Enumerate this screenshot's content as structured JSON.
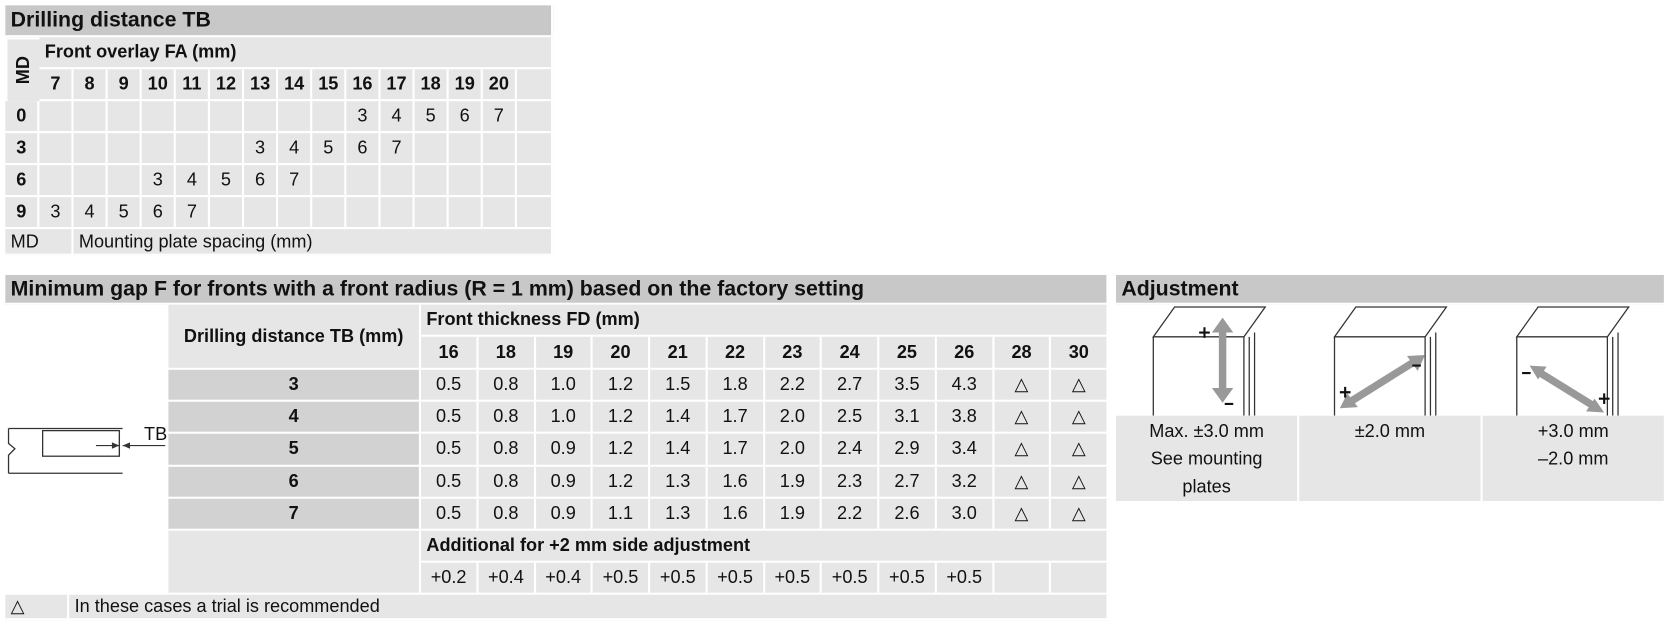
{
  "drilling_table": {
    "title": "Drilling distance TB",
    "row_axis_label": "MD",
    "column_axis_label": "Front overlay FA (mm)",
    "columns": [
      7,
      8,
      9,
      10,
      11,
      12,
      13,
      14,
      15,
      16,
      17,
      18,
      19,
      20
    ],
    "rows": [
      {
        "md": 0,
        "cells": [
          null,
          null,
          null,
          null,
          null,
          null,
          null,
          null,
          null,
          3,
          4,
          5,
          6,
          7
        ]
      },
      {
        "md": 3,
        "cells": [
          null,
          null,
          null,
          null,
          null,
          null,
          3,
          4,
          5,
          6,
          7,
          null,
          null,
          null
        ]
      },
      {
        "md": 6,
        "cells": [
          null,
          null,
          null,
          3,
          4,
          5,
          6,
          7,
          null,
          null,
          null,
          null,
          null,
          null
        ]
      },
      {
        "md": 9,
        "cells": [
          3,
          4,
          5,
          6,
          7,
          null,
          null,
          null,
          null,
          null,
          null,
          null,
          null,
          null
        ]
      }
    ],
    "legend": {
      "abbr": "MD",
      "text": "Mounting plate spacing (mm)"
    }
  },
  "gap_table": {
    "title": "Minimum gap F for fronts with a front radius (R = 1 mm) based on the factory setting",
    "row_axis_label": "Drilling distance TB (mm)",
    "column_axis_label": "Front thickness FD (mm)",
    "diagram_label": "TB",
    "columns": [
      16,
      18,
      19,
      20,
      21,
      22,
      23,
      24,
      25,
      26,
      28,
      30
    ],
    "rows": [
      {
        "tb": 3,
        "cells": [
          "0.5",
          "0.8",
          "1.0",
          "1.2",
          "1.5",
          "1.8",
          "2.2",
          "2.7",
          "3.5",
          "4.3",
          "△",
          "△"
        ]
      },
      {
        "tb": 4,
        "cells": [
          "0.5",
          "0.8",
          "1.0",
          "1.2",
          "1.4",
          "1.7",
          "2.0",
          "2.5",
          "3.1",
          "3.8",
          "△",
          "△"
        ]
      },
      {
        "tb": 5,
        "cells": [
          "0.5",
          "0.8",
          "0.9",
          "1.2",
          "1.4",
          "1.7",
          "2.0",
          "2.4",
          "2.9",
          "3.4",
          "△",
          "△"
        ]
      },
      {
        "tb": 6,
        "cells": [
          "0.5",
          "0.8",
          "0.9",
          "1.2",
          "1.3",
          "1.6",
          "1.9",
          "2.3",
          "2.7",
          "3.2",
          "△",
          "△"
        ]
      },
      {
        "tb": 7,
        "cells": [
          "0.5",
          "0.8",
          "0.9",
          "1.1",
          "1.3",
          "1.6",
          "1.9",
          "2.2",
          "2.6",
          "3.0",
          "△",
          "△"
        ]
      }
    ],
    "additional": {
      "label": "Additional for +2 mm side adjustment",
      "cells": [
        "+0.2",
        "+0.4",
        "+0.4",
        "+0.5",
        "+0.5",
        "+0.5",
        "+0.5",
        "+0.5",
        "+0.5",
        "+0.5",
        null,
        null
      ]
    },
    "legend": {
      "symbol": "△",
      "text": "In these cases a trial is recommended"
    }
  },
  "adjustment": {
    "title": "Adjustment",
    "items": [
      {
        "lines": [
          "Max. ±3.0 mm",
          "See mounting plates"
        ]
      },
      {
        "lines": [
          "±2.0 mm"
        ]
      },
      {
        "lines": [
          "+3.0 mm",
          "–2.0 mm"
        ]
      }
    ]
  }
}
